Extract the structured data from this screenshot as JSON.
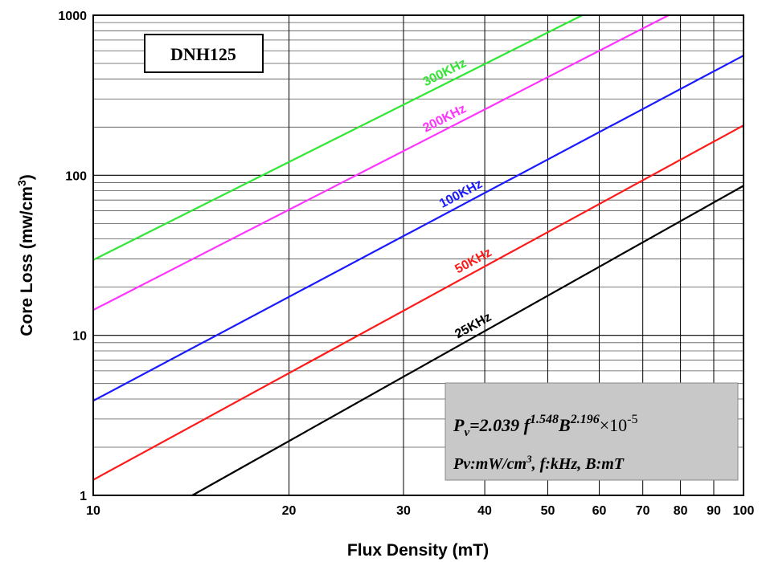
{
  "chart_data": {
    "type": "line",
    "title": "DNH125",
    "xlabel": "Flux Density (mT)",
    "ylabel_main": "Core Loss (mw/cm",
    "ylabel_sup": "3",
    "ylabel_close": ")",
    "x_scale": "log",
    "y_scale": "log",
    "xlim": [
      10,
      100
    ],
    "ylim": [
      1,
      1000
    ],
    "grid": true,
    "x_ticks": [
      10,
      20,
      30,
      40,
      50,
      60,
      70,
      80,
      90,
      100
    ],
    "x_tick_labels": [
      "10",
      "20",
      "30",
      "40",
      "50",
      "60",
      "70",
      "80",
      "90",
      "100"
    ],
    "y_ticks": [
      1,
      10,
      100,
      1000
    ],
    "y_tick_labels": [
      "1",
      "10",
      "100",
      "1000"
    ],
    "series": [
      {
        "name": "300KHz",
        "frequency_khz": 300,
        "color": "#33e633",
        "points": [
          [
            10,
            29.6
          ],
          [
            56.5,
            1000
          ]
        ],
        "label_at_x": 33
      },
      {
        "name": "200KHz",
        "frequency_khz": 200,
        "color": "#ff33ff",
        "points": [
          [
            10,
            14.4
          ],
          [
            76.7,
            1000
          ]
        ],
        "label_at_x": 33
      },
      {
        "name": "100KHz",
        "frequency_khz": 100,
        "color": "#1a1aff",
        "points": [
          [
            10,
            3.9
          ],
          [
            100,
            560
          ]
        ],
        "label_at_x": 35
      },
      {
        "name": "50KHz",
        "frequency_khz": 50,
        "color": "#ff1a1a",
        "points": [
          [
            10,
            1.25
          ],
          [
            100,
            205
          ]
        ],
        "label_at_x": 37
      },
      {
        "name": "25KHz",
        "frequency_khz": 25,
        "color": "#000000",
        "points": [
          [
            14.2,
            1
          ],
          [
            100,
            86
          ]
        ],
        "label_at_x": 37
      }
    ],
    "formula": {
      "line1": {
        "p": "P",
        "sub": "v",
        "mid": "=2.039 ",
        "f": "f",
        "exp1": "1.548",
        "b": "B",
        "exp2": "2.196",
        "times": "×10",
        "exp3": "-5"
      },
      "line2": {
        "a": "Pv:mW/cm",
        "sup": "3",
        "b": ", f:kHz, B:mT"
      },
      "background": "#c8c8c8"
    }
  }
}
